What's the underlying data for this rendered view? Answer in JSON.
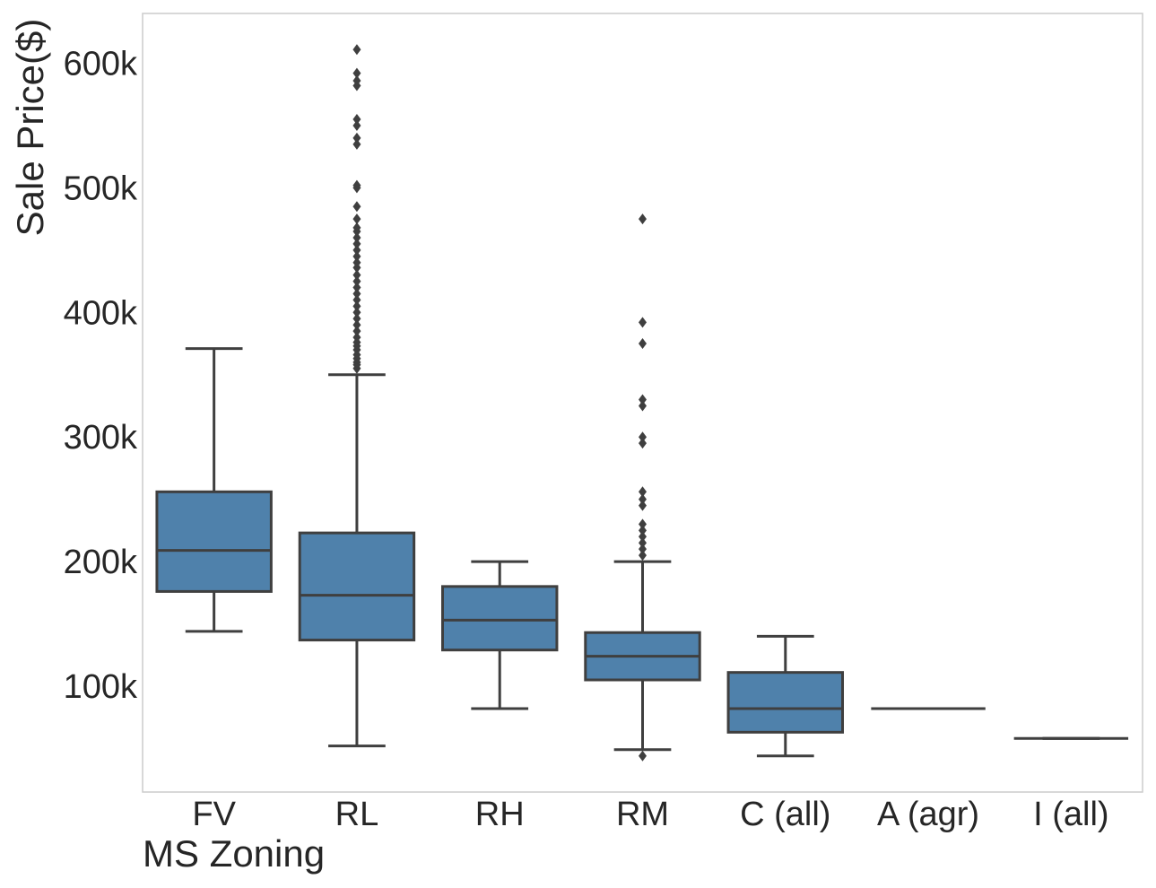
{
  "chart_data": {
    "type": "box",
    "title": "",
    "xlabel": "MS Zoning",
    "ylabel": "Sale Price($)",
    "ylim": [
      15000,
      640000
    ],
    "grid": false,
    "box_color": "#4f81ab",
    "line_color": "#3f3f3f",
    "yticks": [
      {
        "value": 100000,
        "label": "100k"
      },
      {
        "value": 200000,
        "label": "200k"
      },
      {
        "value": 300000,
        "label": "300k"
      },
      {
        "value": 400000,
        "label": "400k"
      },
      {
        "value": 500000,
        "label": "500k"
      },
      {
        "value": 600000,
        "label": "600k"
      }
    ],
    "categories": [
      "FV",
      "RL",
      "RH",
      "RM",
      "C (all)",
      "A (agr)",
      "I (all)"
    ],
    "boxes": [
      {
        "category": "FV",
        "whisker_low": 144000,
        "q1": 176000,
        "median": 209000,
        "q3": 256000,
        "whisker_high": 371000,
        "outliers": []
      },
      {
        "category": "RL",
        "whisker_low": 52000,
        "q1": 137000,
        "median": 173000,
        "q3": 223000,
        "whisker_high": 350000,
        "outliers": [
          355000,
          358000,
          360000,
          363000,
          366000,
          370000,
          373000,
          376000,
          380000,
          385000,
          390000,
          395000,
          400000,
          405000,
          410000,
          415000,
          420000,
          425000,
          430000,
          436000,
          440000,
          445000,
          450000,
          455000,
          460000,
          465000,
          468000,
          475000,
          485000,
          500000,
          502000,
          535000,
          540000,
          550000,
          555000,
          582000,
          586000,
          592000,
          611000
        ]
      },
      {
        "category": "RH",
        "whisker_low": 82000,
        "q1": 129000,
        "median": 153000,
        "q3": 180000,
        "whisker_high": 200000,
        "outliers": []
      },
      {
        "category": "RM",
        "whisker_low": 49000,
        "q1": 105000,
        "median": 124000,
        "q3": 143000,
        "whisker_high": 200000,
        "outliers": [
          44000,
          205000,
          210000,
          215000,
          220000,
          225000,
          230000,
          245000,
          250000,
          256000,
          295000,
          300000,
          325000,
          330000,
          375000,
          392000,
          475000
        ]
      },
      {
        "category": "C (all)",
        "whisker_low": 44000,
        "q1": 63000,
        "median": 82000,
        "q3": 111000,
        "whisker_high": 140000,
        "outliers": []
      },
      {
        "category": "A (agr)",
        "whisker_low": 82000,
        "q1": 82000,
        "median": 82000,
        "q3": 82000,
        "whisker_high": 82000,
        "outliers": []
      },
      {
        "category": "I (all)",
        "whisker_low": 58000,
        "q1": 58000,
        "median": 58000,
        "q3": 58000,
        "whisker_high": 58000,
        "outliers": []
      }
    ]
  }
}
